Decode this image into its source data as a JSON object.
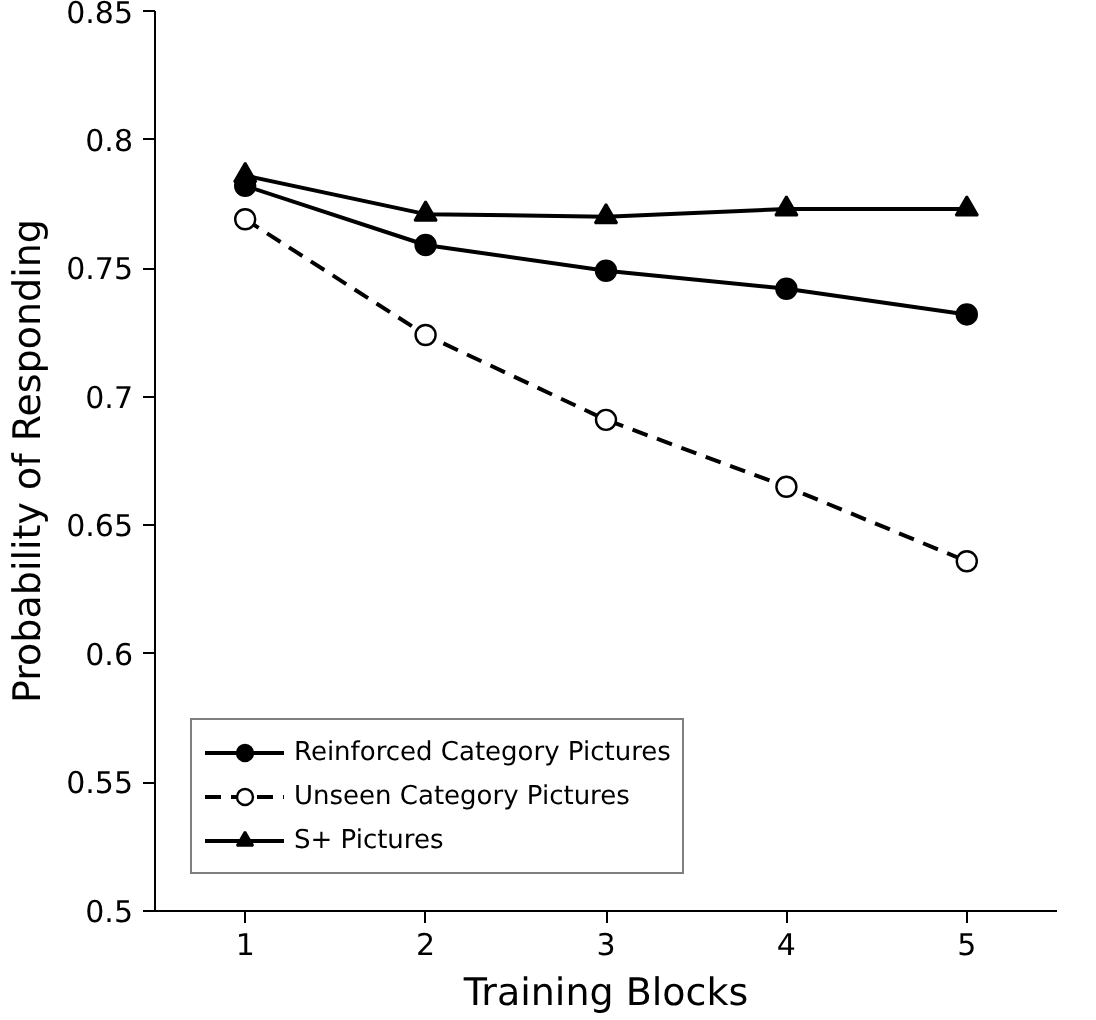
{
  "chart_data": {
    "type": "line",
    "xlabel": "Training Blocks",
    "ylabel": "Probability of Responding",
    "categories": [
      "1",
      "2",
      "3",
      "4",
      "5"
    ],
    "series": [
      {
        "name": "Reinforced Category Pictures",
        "color": "#000000",
        "marker": "circle",
        "line_style": "solid",
        "values": [
          0.782,
          0.759,
          0.749,
          0.742,
          0.732
        ]
      },
      {
        "name": "Unseen Category Pictures",
        "color": "#000000",
        "marker": "circle",
        "line_style": "dashed",
        "values": [
          0.769,
          0.724,
          0.691,
          0.665,
          0.636
        ]
      },
      {
        "name": "S+ Pictures",
        "color": "#000000",
        "marker": "triangle",
        "line_style": "solid",
        "values": [
          0.786,
          0.771,
          0.77,
          0.773,
          0.773
        ]
      }
    ],
    "ylim": [
      0.5,
      0.85
    ],
    "yticks": [
      0.5,
      0.55,
      0.6,
      0.65,
      0.7,
      0.75,
      0.8,
      0.85
    ],
    "grid": false,
    "legend": "bottom left"
  }
}
